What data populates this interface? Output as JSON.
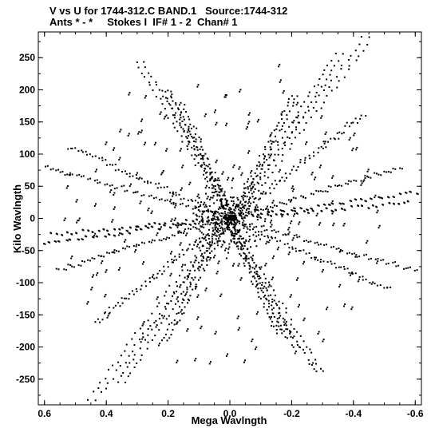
{
  "header": {
    "line1": "V vs U for 1744-312.C BAND.1   Source:1744-312",
    "line2": "Ants * - *     Stokes I  IF# 1 - 2  Chan# 1"
  },
  "chart_data": {
    "type": "scatter",
    "title": "V vs U for 1744-312.C BAND.1   Source:1744-312",
    "subtitle": "Ants * - *     Stokes I  IF# 1 - 2  Chan# 1",
    "xlabel": "Mega Wavlngth",
    "ylabel": "Kilo Wavlngth",
    "xlim": [
      0.62,
      -0.62
    ],
    "ylim": [
      -290,
      290
    ],
    "x_ticks": [
      0.6,
      0.4,
      0.2,
      0.0,
      -0.2,
      -0.4,
      -0.6
    ],
    "x_tick_labels": [
      "0.6",
      "0.4",
      "0.2",
      "0.0",
      "-0.2",
      "-0.4",
      "-0.6"
    ],
    "y_ticks": [
      250,
      200,
      150,
      100,
      50,
      0,
      -50,
      -100,
      -150,
      -200,
      -250
    ],
    "y_tick_labels": [
      "250",
      "200",
      "150",
      "100",
      "50",
      "0",
      "-50",
      "-100",
      "-150",
      "-200",
      "-250"
    ],
    "grid": false,
    "legend": "none",
    "marker_color": "#000000",
    "arm_ends": [
      [
        -0.43,
        280
      ],
      [
        0.43,
        -280
      ],
      [
        0.3,
        240
      ],
      [
        -0.3,
        -240
      ],
      [
        0.6,
        80
      ],
      [
        -0.6,
        -80
      ],
      [
        0.58,
        -25
      ],
      [
        -0.58,
        25
      ],
      [
        0.55,
        -80
      ],
      [
        -0.55,
        80
      ],
      [
        -0.34,
        255
      ],
      [
        0.34,
        -255
      ],
      [
        0.22,
        200
      ],
      [
        -0.22,
        -200
      ],
      [
        0.17,
        180
      ],
      [
        -0.17,
        -180
      ],
      [
        -0.2,
        190
      ],
      [
        0.2,
        -190
      ],
      [
        -0.6,
        40
      ],
      [
        0.6,
        -40
      ],
      [
        0.52,
        110
      ],
      [
        -0.52,
        -110
      ],
      [
        -0.42,
        160
      ],
      [
        0.42,
        -160
      ]
    ]
  }
}
